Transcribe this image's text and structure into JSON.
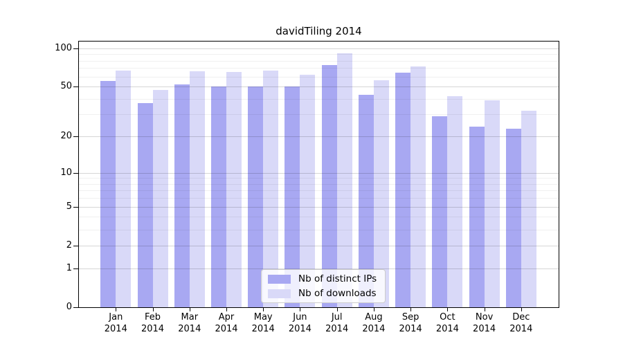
{
  "chart_data": {
    "type": "bar",
    "title": "davidTiling 2014",
    "x_axis": {
      "categories": [
        "Jan",
        "Feb",
        "Mar",
        "Apr",
        "May",
        "Jun",
        "Jul",
        "Aug",
        "Sep",
        "Oct",
        "Nov",
        "Dec"
      ],
      "year_label": "2014"
    },
    "y_axis": {
      "scale": "log1p",
      "major_ticks": [
        100,
        50,
        20,
        10,
        5,
        2,
        1,
        0
      ],
      "minor_gridlines": [
        3,
        4,
        6,
        7,
        8,
        9,
        30,
        40,
        60,
        70,
        80,
        90
      ],
      "range_top": 116,
      "grid": true
    },
    "series": [
      {
        "key": "distinct-ips",
        "name": "Nb of distinct IPs",
        "color": "#a8a8f2",
        "values": [
          55,
          37,
          52,
          50,
          50,
          50,
          74,
          43,
          64,
          29,
          24,
          23
        ]
      },
      {
        "key": "downloads",
        "name": "Nb of downloads",
        "color": "#d9d9f8",
        "values": [
          67,
          47,
          66,
          65,
          67,
          62,
          91,
          56,
          72,
          42,
          39,
          32
        ]
      }
    ],
    "legend": {
      "position": "bottom-center",
      "entries": [
        "Nb of distinct IPs",
        "Nb of downloads"
      ]
    }
  }
}
